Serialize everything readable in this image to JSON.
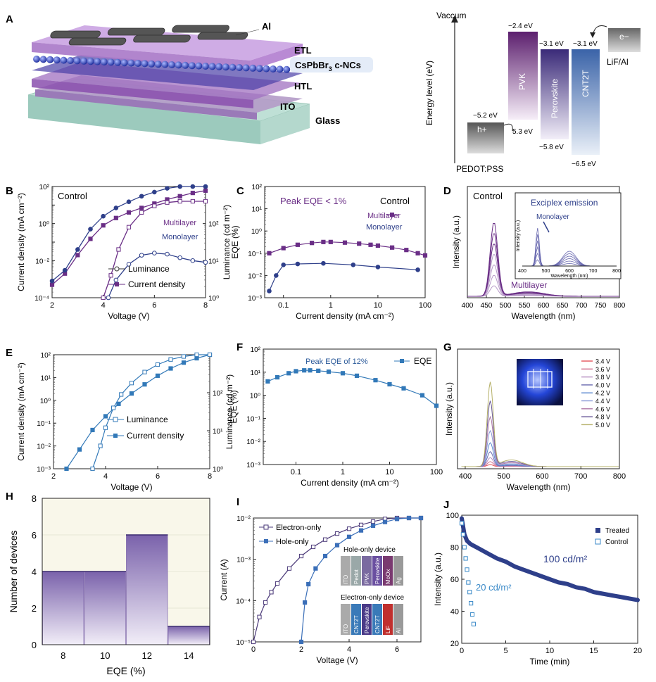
{
  "panel_labels": {
    "A": "A",
    "B": "B",
    "C": "C",
    "D": "D",
    "E": "E",
    "F": "F",
    "G": "G",
    "H": "H",
    "I": "I",
    "J": "J"
  },
  "panel_A": {
    "layers": {
      "al": "Al",
      "etl": "ETL",
      "ncs": "CsPbBr",
      "ncs_sub": "3",
      "ncs_suffix": " c-NCs",
      "htl": "HTL",
      "ito": "ITO",
      "glass": "Glass"
    },
    "energy": {
      "vaccum": "Vaccum",
      "axis": "Energy level (eV)",
      "pedot": "PEDOT:PSS",
      "pedot_top": "−5.2 eV",
      "hplus": "h+",
      "h_arrow": "5.3 eV",
      "pvk": "PVK",
      "pvk_top": "−2.4 eV",
      "perovskite": "Perovskite",
      "perov_top": "−3.1 eV",
      "perov_bot": "−5.8 eV",
      "cnt2t": "CNT2T",
      "cnt_top": "−3.1 eV",
      "cnt_bot": "−6.5 eV",
      "electron": "e−",
      "lif": "LiF/Al"
    }
  },
  "chart_data": [
    {
      "id": "B",
      "type": "line",
      "title": "Control",
      "xlabel": "Voltage (V)",
      "ylabel": "Current density (mA cm⁻²)",
      "y2label": "Luminance (cd m⁻²)",
      "xlim": [
        2,
        8
      ],
      "ylim": [
        0.0001,
        100
      ],
      "y2lim": [
        1,
        1000
      ],
      "log_y": true,
      "xticks": [
        "2",
        "4",
        "6",
        "8"
      ],
      "yticks": [
        "10⁻⁴",
        "10⁻²",
        "10⁰",
        "10²"
      ],
      "y2ticks": [
        "10⁰",
        "10¹",
        "10²"
      ],
      "annotations": [
        "Multilayer",
        "Monolayer"
      ],
      "legend": [
        "Luminance",
        "Current density"
      ],
      "series": [
        {
          "name": "Multilayer",
          "kind": "current",
          "x": [
            2.0,
            2.5,
            3.0,
            3.5,
            4.0,
            4.5,
            5.0,
            5.5,
            6.0,
            6.5,
            7.0,
            7.5,
            8.0
          ],
          "y": [
            0.0005,
            0.002,
            0.02,
            0.15,
            0.8,
            2,
            4,
            7,
            12,
            20,
            30,
            45,
            60
          ]
        },
        {
          "name": "Monolayer",
          "kind": "current",
          "x": [
            2.0,
            2.5,
            3.0,
            3.5,
            4.0,
            4.5,
            5.0,
            5.5,
            6.0,
            6.5,
            7.0,
            7.5,
            8.0
          ],
          "y": [
            0.0008,
            0.003,
            0.04,
            0.5,
            2.5,
            7,
            15,
            30,
            50,
            80,
            120,
            150,
            150
          ]
        },
        {
          "name": "Multilayer",
          "kind": "luminance",
          "x": [
            4.0,
            4.3,
            4.6,
            5.0,
            5.5,
            6.0,
            6.5,
            7.0,
            7.5,
            8.0
          ],
          "y": [
            1,
            4,
            20,
            80,
            200,
            300,
            370,
            400,
            400,
            400
          ]
        },
        {
          "name": "Monolayer",
          "kind": "luminance",
          "x": [
            4.2,
            4.5,
            5.0,
            5.5,
            6.0,
            6.5,
            7.0,
            7.5,
            8.0
          ],
          "y": [
            1,
            3,
            8,
            14,
            16,
            15,
            12,
            10,
            9
          ]
        }
      ]
    },
    {
      "id": "C",
      "type": "line",
      "title": "Control",
      "annotation": "Peak EQE < 1%",
      "xlabel": "Current density (mA cm⁻²)",
      "ylabel": "EQE (%)",
      "xlim": [
        0.04,
        100
      ],
      "ylim": [
        0.001,
        100
      ],
      "log_x": true,
      "log_y": true,
      "xticks": [
        "0.1",
        "1",
        "10",
        "100"
      ],
      "yticks": [
        "10⁻³",
        "10⁻²",
        "10⁻¹",
        "10⁰",
        "10¹",
        "10²"
      ],
      "legend": [
        "Multilayer",
        "Monolayer"
      ],
      "series": [
        {
          "name": "Multilayer",
          "x": [
            0.05,
            0.1,
            0.2,
            0.4,
            0.7,
            1,
            2,
            4,
            7,
            10,
            20,
            40,
            70,
            100
          ],
          "y": [
            0.1,
            0.17,
            0.24,
            0.29,
            0.32,
            0.32,
            0.3,
            0.27,
            0.24,
            0.22,
            0.18,
            0.14,
            0.1,
            0.08
          ]
        },
        {
          "name": "Monolayer",
          "x": [
            0.05,
            0.07,
            0.1,
            0.2,
            0.7,
            3,
            10,
            70
          ],
          "y": [
            0.002,
            0.01,
            0.03,
            0.033,
            0.035,
            0.03,
            0.024,
            0.018
          ]
        }
      ]
    },
    {
      "id": "D",
      "type": "line",
      "title": "Control",
      "xlabel": "Wavelength (nm)",
      "ylabel": "Intensity (a.u.)",
      "xlim": [
        400,
        800
      ],
      "xticks": [
        "400",
        "450",
        "500",
        "550",
        "600",
        "650",
        "700",
        "750",
        "800"
      ],
      "annotation": "Multilayer",
      "inset": {
        "title": "Exciplex emission",
        "label": "Monolayer",
        "xlabel": "Wavelength (nm)",
        "ylabel": "Intensity (a.u.)",
        "xticks": [
          "400",
          "500",
          "600",
          "700",
          "800"
        ]
      },
      "peak_nm": 470,
      "num_curves": 7
    },
    {
      "id": "E",
      "type": "line",
      "xlabel": "Voltage (V)",
      "ylabel": "Current density (mA cm⁻²)",
      "y2label": "Luminance (cd m⁻²)",
      "xlim": [
        2,
        8
      ],
      "ylim": [
        0.001,
        100
      ],
      "y2lim": [
        1,
        1000
      ],
      "log_y": true,
      "xticks": [
        "2",
        "4",
        "6",
        "8"
      ],
      "yticks": [
        "10⁻³",
        "10⁻²",
        "10⁻¹",
        "10⁰",
        "10¹",
        "10²"
      ],
      "y2ticks": [
        "10⁰",
        "10¹",
        "10²"
      ],
      "legend": [
        "Luminance",
        "Current density"
      ],
      "series": [
        {
          "name": "Current density",
          "x": [
            2.5,
            3.0,
            3.5,
            4.0,
            4.5,
            5.0,
            5.5,
            6.0,
            6.5,
            7.0,
            7.5,
            8.0
          ],
          "y": [
            0.001,
            0.007,
            0.05,
            0.2,
            0.7,
            2,
            5,
            12,
            25,
            45,
            70,
            100
          ]
        },
        {
          "name": "Luminance",
          "x": [
            3.5,
            3.8,
            4.0,
            4.3,
            4.6,
            5.0,
            5.5,
            6.0,
            6.5,
            7.0,
            7.5,
            8.0
          ],
          "y": [
            1,
            4,
            12,
            40,
            90,
            180,
            350,
            550,
            750,
            900,
            1000,
            1000
          ]
        }
      ]
    },
    {
      "id": "F",
      "type": "line",
      "annotation": "Peak EQE of 12%",
      "xlabel": "Current density (mA cm⁻²)",
      "ylabel": "EQE (%)",
      "xlim": [
        0.02,
        100
      ],
      "ylim": [
        0.001,
        100
      ],
      "log_x": true,
      "log_y": true,
      "xticks": [
        "0.1",
        "1",
        "10",
        "100"
      ],
      "yticks": [
        "10⁻³",
        "10⁻²",
        "10⁻¹",
        "10⁰",
        "10¹",
        "10²"
      ],
      "legend": [
        "EQE"
      ],
      "series": [
        {
          "name": "EQE",
          "x": [
            0.025,
            0.04,
            0.07,
            0.1,
            0.15,
            0.2,
            0.3,
            0.5,
            1,
            2,
            5,
            10,
            20,
            50,
            100
          ],
          "y": [
            4,
            6,
            9,
            11,
            12,
            12,
            11.5,
            10.5,
            9,
            7,
            4.5,
            3,
            2,
            1,
            0.35
          ]
        }
      ]
    },
    {
      "id": "G",
      "type": "line",
      "xlabel": "Wavelength (nm)",
      "ylabel": "Intensity (a.u.)",
      "xlim": [
        380,
        800
      ],
      "xticks": [
        "400",
        "500",
        "600",
        "700",
        "800"
      ],
      "legend": [
        "3.4 V",
        "3.6 V",
        "3.8 V",
        "4.0 V",
        "4.2 V",
        "4.4 V",
        "4.6 V",
        "4.8 V",
        "5.0 V"
      ],
      "colors": [
        "#e4545a",
        "#d07090",
        "#b58cc0",
        "#6a6ab0",
        "#5c8ad0",
        "#8a9ad8",
        "#b07aa8",
        "#6a5a9a",
        "#b5b068"
      ],
      "peak_nm": 465,
      "amplitudes": [
        0.02,
        0.05,
        0.09,
        0.15,
        0.24,
        0.36,
        0.5,
        0.66,
        0.85
      ]
    },
    {
      "id": "H",
      "type": "bar",
      "xlabel": "EQE (%)",
      "ylabel": "Number of devices",
      "categories": [
        "8",
        "10",
        "12",
        "14"
      ],
      "bins": [
        [
          7,
          9
        ],
        [
          9,
          11
        ],
        [
          11,
          13
        ],
        [
          13,
          15
        ]
      ],
      "values": [
        4,
        4,
        6,
        1
      ],
      "ylim": [
        0,
        8
      ],
      "yticks": [
        "0",
        "2",
        "4",
        "6",
        "8"
      ]
    },
    {
      "id": "I",
      "type": "line",
      "xlabel": "Voltage (V)",
      "ylabel": "Current (A)",
      "xlim": [
        0,
        7
      ],
      "ylim": [
        1e-05,
        0.01
      ],
      "log_y": true,
      "xticks": [
        "0",
        "2",
        "4",
        "6"
      ],
      "yticks": [
        "10⁻⁵",
        "10⁻⁴",
        "10⁻³",
        "10⁻²"
      ],
      "legend": [
        "Electron-only",
        "Hole-only"
      ],
      "series": [
        {
          "name": "Electron-only",
          "x": [
            0,
            0.25,
            0.5,
            0.75,
            1,
            1.5,
            2,
            2.5,
            3,
            3.5,
            4,
            4.5,
            5,
            5.5,
            6,
            6.5,
            7
          ],
          "y": [
            1e-05,
            4e-05,
            9e-05,
            0.00016,
            0.00026,
            0.0006,
            0.0012,
            0.002,
            0.003,
            0.0042,
            0.0055,
            0.0068,
            0.0082,
            0.0095,
            0.011,
            0.0125,
            0.014
          ]
        },
        {
          "name": "Hole-only",
          "x": [
            2.0,
            2.15,
            2.3,
            2.6,
            3.0,
            3.5,
            4.0,
            4.5,
            5.0,
            5.5,
            6.0,
            6.5,
            7.0
          ],
          "y": [
            1e-05,
            9e-05,
            0.00025,
            0.0006,
            0.0012,
            0.0022,
            0.0035,
            0.005,
            0.0065,
            0.008,
            0.0095,
            0.011,
            0.0125
          ]
        }
      ],
      "inset": {
        "hole_title": "Hole-only device",
        "hole_layers": [
          "ITO",
          "Pedot",
          "PVK",
          "Perovskite",
          "MoOx",
          "Ag"
        ],
        "electron_title": "Electron-only device",
        "electron_layers": [
          "ITO",
          "CNT2T",
          "Perovskite",
          "CNT2T",
          "LiF",
          "Al"
        ]
      }
    },
    {
      "id": "J",
      "type": "line",
      "xlabel": "Time (min)",
      "ylabel": "Intensity (a.u.)",
      "xlim": [
        0,
        20
      ],
      "ylim": [
        0,
        100
      ],
      "xticks": [
        "0",
        "5",
        "10",
        "15",
        "20"
      ],
      "yticks": [
        "20",
        "40",
        "60",
        "80",
        "100"
      ],
      "legend": [
        "Treated",
        "Control"
      ],
      "annotations": [
        "100 cd/m²",
        "20 cd/m²"
      ],
      "series": [
        {
          "name": "Treated",
          "x": [
            0,
            0.3,
            0.6,
            1,
            2,
            3,
            4,
            5,
            6,
            7,
            8,
            9,
            10,
            11,
            12,
            13,
            14,
            15,
            16,
            17,
            18,
            19,
            20
          ],
          "y": [
            98,
            88,
            84,
            82,
            79,
            76,
            73,
            71,
            68,
            66,
            64,
            62,
            60,
            58,
            57,
            55,
            54,
            52,
            51,
            50,
            49,
            48,
            47
          ]
        },
        {
          "name": "Control",
          "x": [
            0,
            0.15,
            0.3,
            0.45,
            0.6,
            0.75,
            0.9,
            1.05,
            1.2,
            1.35
          ],
          "y": [
            95,
            88,
            80,
            73,
            66,
            58,
            52,
            45,
            38,
            32
          ]
        }
      ]
    }
  ]
}
